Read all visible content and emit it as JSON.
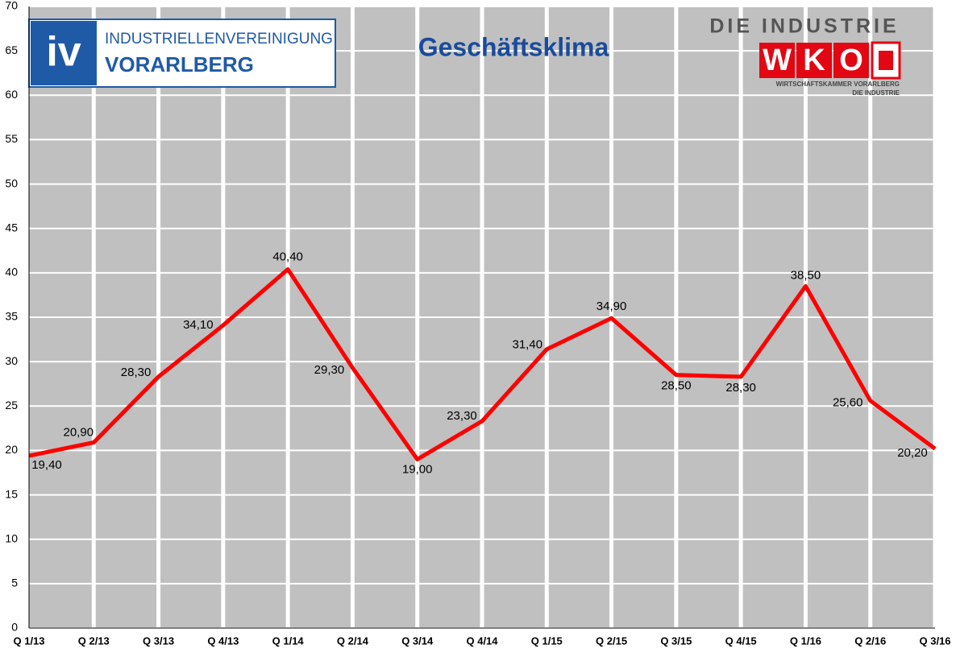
{
  "chart_data": {
    "type": "line",
    "title": "Geschäftsklima",
    "categories": [
      "Q 1/13",
      "Q 2/13",
      "Q 3/13",
      "Q 4/13",
      "Q 1/14",
      "Q 2/14",
      "Q 3/14",
      "Q 4/14",
      "Q 1/15",
      "Q 2/15",
      "Q 3/15",
      "Q 4/15",
      "Q 1/16",
      "Q 2/16",
      "Q 3/16"
    ],
    "series": [
      {
        "color": "#ff0000",
        "values": [
          19.4,
          20.9,
          28.3,
          34.1,
          40.4,
          29.3,
          19.0,
          23.3,
          31.4,
          34.9,
          28.5,
          28.3,
          38.5,
          25.6,
          20.2
        ],
        "value_labels": [
          "19,40",
          "20,90",
          "28,30",
          "34,10",
          "40,40",
          "29,30",
          "19,00",
          "23,30",
          "31,40",
          "34,90",
          "28,50",
          "28,30",
          "38,50",
          "25,60",
          "20,20"
        ]
      }
    ],
    "ylim": [
      0,
      70
    ],
    "yticks": [
      0,
      5,
      10,
      15,
      20,
      25,
      30,
      35,
      40,
      45,
      50,
      55,
      60,
      65,
      70
    ],
    "grid": true,
    "background": "#c0c0c0"
  },
  "logos": {
    "iv": {
      "mark": "iv",
      "line1": "INDUSTRIELLENVEREINIGUNG",
      "line2": "VORARLBERG"
    },
    "wko": {
      "header": "DIE INDUSTRIE",
      "letters": [
        "W",
        "K",
        "O"
      ],
      "sub1": "WIRTSCHAFTSKAMMER VORARLBERG",
      "sub2": "DIE INDUSTRIE"
    }
  }
}
